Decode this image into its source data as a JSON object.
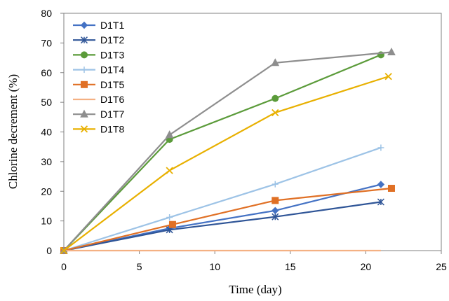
{
  "chart_data": {
    "type": "line",
    "title": "",
    "xlabel": "Time (day)",
    "ylabel": "Chlorine  decrement (%)",
    "xlim": [
      0,
      25
    ],
    "ylim": [
      0,
      80
    ],
    "x_ticks": [
      0,
      5,
      10,
      15,
      20,
      25
    ],
    "y_ticks": [
      0,
      10,
      20,
      30,
      40,
      50,
      60,
      70,
      80
    ],
    "grid": false,
    "legend_position": "top-left",
    "series": [
      {
        "name": "D1T1",
        "color": "#4472C4",
        "marker": "diamond",
        "x": [
          0,
          7,
          14,
          21
        ],
        "y": [
          0,
          7.5,
          13.5,
          22.3
        ]
      },
      {
        "name": "D1T2",
        "color": "#2F5597",
        "marker": "asterisk",
        "x": [
          0,
          7,
          14,
          21
        ],
        "y": [
          0,
          7,
          11.4,
          16.4
        ]
      },
      {
        "name": "D1T3",
        "color": "#5B9B3A",
        "marker": "circle",
        "x": [
          0,
          7,
          14,
          21
        ],
        "y": [
          0,
          37.5,
          51.3,
          66
        ]
      },
      {
        "name": "D1T4",
        "color": "#9DC3E6",
        "marker": "plus",
        "x": [
          0,
          7,
          14,
          21
        ],
        "y": [
          0,
          11.2,
          22.4,
          34.7
        ]
      },
      {
        "name": "D1T5",
        "color": "#E07025",
        "marker": "square",
        "x": [
          0,
          7.2,
          14,
          21.7
        ],
        "y": [
          0,
          8.8,
          16.9,
          21
        ]
      },
      {
        "name": "D1T6",
        "color": "#F4B183",
        "marker": "none",
        "x": [
          0,
          7,
          14,
          21
        ],
        "y": [
          0,
          0,
          0,
          0
        ]
      },
      {
        "name": "D1T7",
        "color": "#8E8E8E",
        "marker": "triangle",
        "x": [
          0,
          7,
          14,
          21.7
        ],
        "y": [
          0,
          39,
          63.3,
          66.9
        ]
      },
      {
        "name": "D1T8",
        "color": "#E8B000",
        "marker": "x",
        "x": [
          0,
          7,
          14,
          21.5
        ],
        "y": [
          0,
          27,
          46.5,
          58.7
        ]
      }
    ]
  }
}
